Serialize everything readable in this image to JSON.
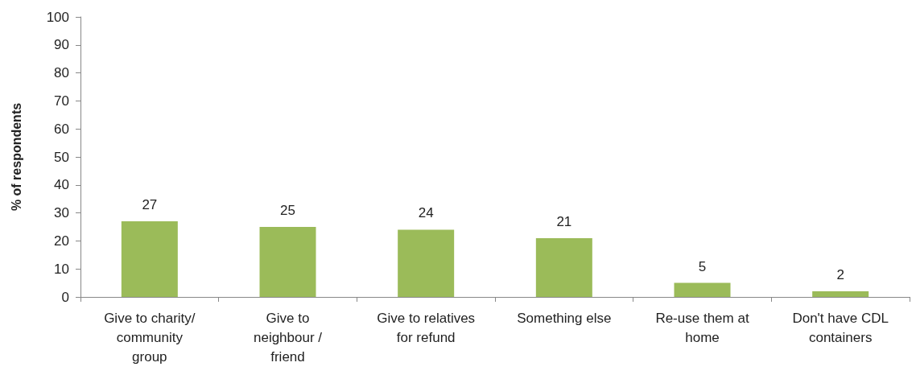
{
  "chart_data": {
    "type": "bar",
    "ylabel": "% of respondents",
    "categories": [
      "Give to charity/\ncommunity\ngroup",
      "Give to\nneighbour /\nfriend",
      "Give to relatives\nfor refund",
      "Something else",
      "Re-use them at\nhome",
      "Don't have CDL\ncontainers"
    ],
    "values": [
      27,
      25,
      24,
      21,
      5,
      2
    ],
    "color": "#9bbb59",
    "ylim": [
      0,
      100
    ],
    "yticks": [
      0,
      10,
      20,
      30,
      40,
      50,
      60,
      70,
      80,
      90,
      100
    ],
    "grid": false,
    "data_labels": true
  }
}
